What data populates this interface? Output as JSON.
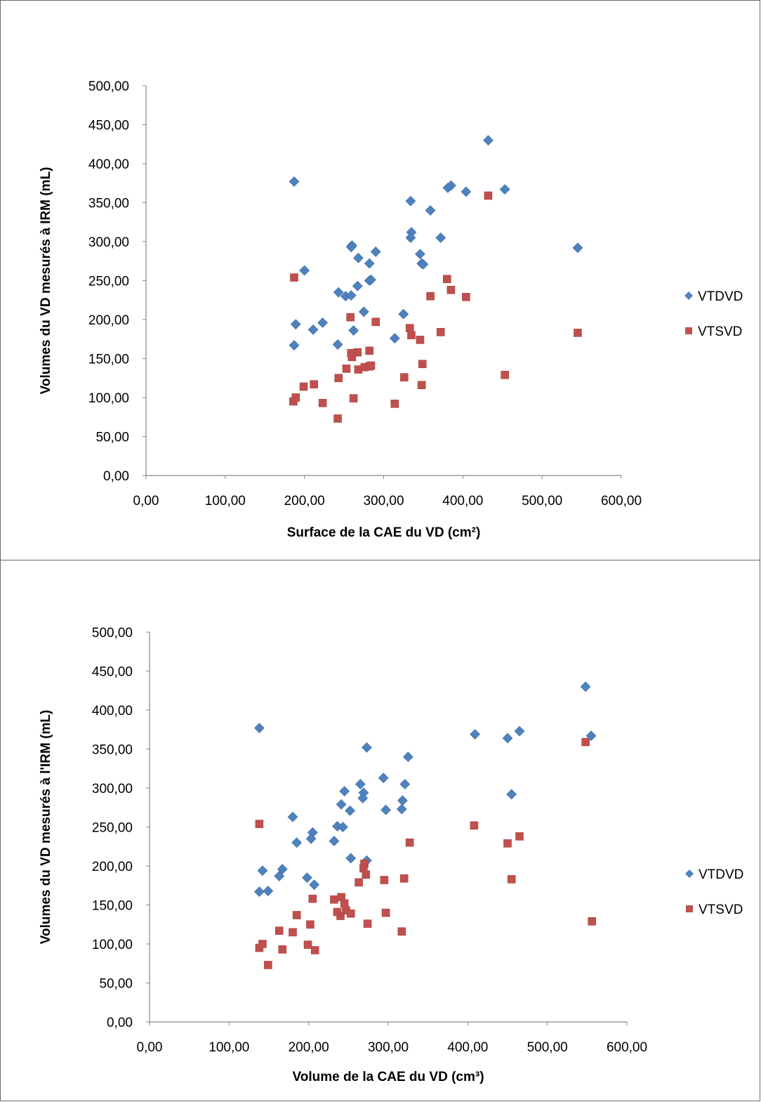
{
  "chart_data": [
    {
      "type": "scatter",
      "title": "",
      "xlabel": "Surface de la CAE du VD (cm²)",
      "ylabel": "Volumes du VD mesurés  à IRM (mL)",
      "xlim": [
        0,
        600
      ],
      "ylim": [
        0,
        500
      ],
      "x_ticks": [
        "0,00",
        "100,00",
        "200,00",
        "300,00",
        "400,00",
        "500,00",
        "600,00"
      ],
      "y_ticks": [
        "0,00",
        "50,00",
        "100,00",
        "150,00",
        "200,00",
        "250,00",
        "300,00",
        "350,00",
        "400,00",
        "450,00",
        "500,00"
      ],
      "grid": false,
      "legend_position": "right",
      "series": [
        {
          "name": "VTDVD",
          "color": "#4f81bd",
          "marker": "diamond",
          "points": [
            [
              432,
              430
            ],
            [
              187,
              377
            ],
            [
              385,
              372
            ],
            [
              381,
              369
            ],
            [
              404,
              364
            ],
            [
              453,
              367
            ],
            [
              334,
              352
            ],
            [
              359,
              340
            ],
            [
              335,
              312
            ],
            [
              334,
              305
            ],
            [
              372,
              305
            ],
            [
              545,
              292
            ],
            [
              260,
              295
            ],
            [
              259,
              293
            ],
            [
              290,
              287
            ],
            [
              346,
              284
            ],
            [
              348,
              272
            ],
            [
              350,
              271
            ],
            [
              200,
              263
            ],
            [
              282,
              272
            ],
            [
              268,
              279
            ],
            [
              282,
              250
            ],
            [
              284,
              251
            ],
            [
              267,
              243
            ],
            [
              243,
              235
            ],
            [
              252,
              230
            ],
            [
              259,
              231
            ],
            [
              275,
              210
            ],
            [
              325,
              207
            ],
            [
              187,
              167
            ],
            [
              189,
              194
            ],
            [
              211,
              187
            ],
            [
              223,
              196
            ],
            [
              262,
              186
            ],
            [
              242,
              168
            ],
            [
              314,
              176
            ]
          ]
        },
        {
          "name": "VTSVD",
          "color": "#c0504d",
          "marker": "square",
          "points": [
            [
              432,
              359
            ],
            [
              187,
              254
            ],
            [
              380,
              252
            ],
            [
              385,
              238
            ],
            [
              359,
              230
            ],
            [
              404,
              229
            ],
            [
              258,
              203
            ],
            [
              290,
              197
            ],
            [
              333,
              189
            ],
            [
              335,
              180
            ],
            [
              346,
              174
            ],
            [
              372,
              184
            ],
            [
              545,
              183
            ],
            [
              282,
              160
            ],
            [
              267,
              158
            ],
            [
              259,
              157
            ],
            [
              260,
              152
            ],
            [
              253,
              137
            ],
            [
              268,
              136
            ],
            [
              276,
              139
            ],
            [
              282,
              140
            ],
            [
              284,
              141
            ],
            [
              349,
              143
            ],
            [
              243,
              125
            ],
            [
              326,
              126
            ],
            [
              453,
              129
            ],
            [
              199,
              114
            ],
            [
              212,
              117
            ],
            [
              348,
              116
            ],
            [
              186,
              95
            ],
            [
              189,
              100
            ],
            [
              262,
              99
            ],
            [
              223,
              93
            ],
            [
              314,
              92
            ],
            [
              242,
              73
            ]
          ]
        }
      ]
    },
    {
      "type": "scatter",
      "title": "",
      "xlabel": "Volume de la CAE du VD (cm³)",
      "ylabel": "Volumes du VD mesurés à l'IRM (mL)",
      "xlim": [
        0,
        600
      ],
      "ylim": [
        0,
        500
      ],
      "x_ticks": [
        "0,00",
        "100,00",
        "200,00",
        "300,00",
        "400,00",
        "500,00",
        "600,00"
      ],
      "y_ticks": [
        "0,00",
        "50,00",
        "100,00",
        "150,00",
        "200,00",
        "250,00",
        "300,00",
        "350,00",
        "400,00",
        "450,00",
        "500,00"
      ],
      "grid": false,
      "legend_position": "right",
      "series": [
        {
          "name": "VTDVD",
          "color": "#4f81bd",
          "marker": "diamond",
          "points": [
            [
              548,
              430
            ],
            [
              138,
              377
            ],
            [
              465,
              373
            ],
            [
              409,
              369
            ],
            [
              450,
              364
            ],
            [
              555,
              367
            ],
            [
              273,
              352
            ],
            [
              325,
              340
            ],
            [
              294,
              313
            ],
            [
              265,
              305
            ],
            [
              321,
              305
            ],
            [
              455,
              292
            ],
            [
              245,
              296
            ],
            [
              269,
              294
            ],
            [
              268,
              287
            ],
            [
              318,
              284
            ],
            [
              317,
              273
            ],
            [
              297,
              272
            ],
            [
              180,
              263
            ],
            [
              252,
              271
            ],
            [
              241,
              279
            ],
            [
              236,
              251
            ],
            [
              243,
              250
            ],
            [
              205,
              243
            ],
            [
              203,
              235
            ],
            [
              185,
              230
            ],
            [
              232,
              232
            ],
            [
              253,
              210
            ],
            [
              273,
              207
            ],
            [
              138,
              167
            ],
            [
              142,
              194
            ],
            [
              163,
              187
            ],
            [
              167,
              196
            ],
            [
              198,
              185
            ],
            [
              149,
              168
            ],
            [
              207,
              176
            ]
          ]
        },
        {
          "name": "VTSVD",
          "color": "#c0504d",
          "marker": "square",
          "points": [
            [
              548,
              359
            ],
            [
              138,
              254
            ],
            [
              408,
              252
            ],
            [
              465,
              238
            ],
            [
              327,
              230
            ],
            [
              450,
              229
            ],
            [
              270,
              203
            ],
            [
              269,
              197
            ],
            [
              272,
              189
            ],
            [
              263,
              179
            ],
            [
              295,
              182
            ],
            [
              320,
              184
            ],
            [
              455,
              183
            ],
            [
              205,
              158
            ],
            [
              241,
              160
            ],
            [
              232,
              157
            ],
            [
              245,
              152
            ],
            [
              185,
              137
            ],
            [
              240,
              136
            ],
            [
              247,
              143
            ],
            [
              253,
              139
            ],
            [
              236,
              141
            ],
            [
              297,
              140
            ],
            [
              202,
              125
            ],
            [
              274,
              126
            ],
            [
              556,
              129
            ],
            [
              180,
              115
            ],
            [
              163,
              117
            ],
            [
              317,
              116
            ],
            [
              138,
              95
            ],
            [
              142,
              100
            ],
            [
              199,
              99
            ],
            [
              167,
              93
            ],
            [
              208,
              92
            ],
            [
              149,
              73
            ]
          ]
        }
      ]
    }
  ]
}
